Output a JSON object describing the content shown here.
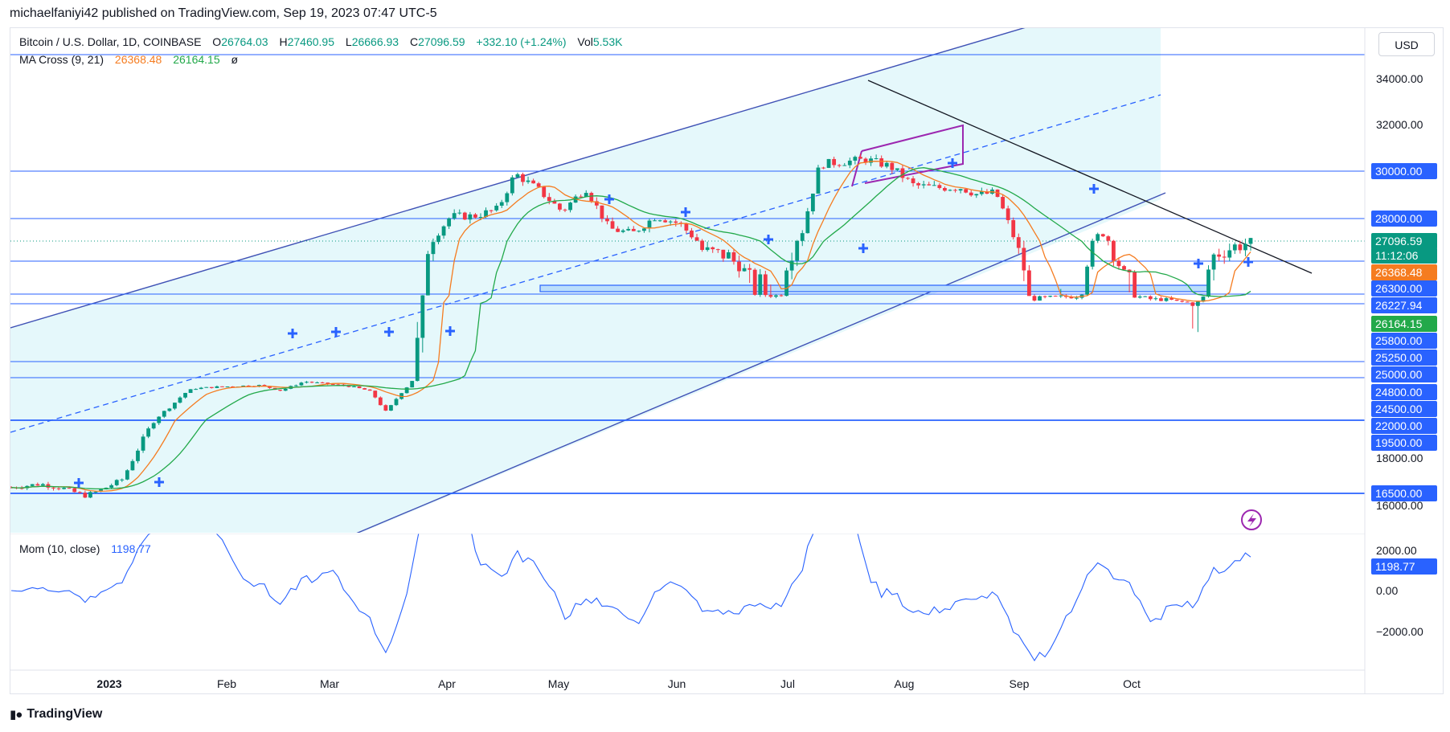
{
  "caption": "michaelfaniyi42 published on TradingView.com, Sep 19, 2023 07:47 UTC-5",
  "legend": {
    "symbol": "Bitcoin / U.S. Dollar, 1D, COINBASE",
    "o_label": "O",
    "o": "26764.03",
    "h_label": "H",
    "h": "27460.95",
    "l_label": "L",
    "l": "26666.93",
    "c_label": "C",
    "c": "27096.59",
    "change": "+332.10 (+1.24%)",
    "vol_label": "Vol",
    "vol": "5.53K"
  },
  "ma_legend": {
    "name": "MA Cross (9, 21)",
    "ma9": "26368.48",
    "ma21": "26164.15",
    "extra": "ø"
  },
  "mom_legend": {
    "name": "Mom (10, close)",
    "value": "1198.77"
  },
  "currency": "USD",
  "footer": "TradingView",
  "colors": {
    "up": "#089981",
    "down": "#f23645",
    "ma9": "#f57c20",
    "ma21": "#22a94a",
    "level": "#2962ff",
    "channel_fill": "#b2ebf2",
    "trend": "#3f51b5",
    "flag": "#9c27b0",
    "momentum": "#2962ff"
  },
  "chart_data": [
    {
      "type": "candlestick",
      "title": "Bitcoin / U.S. Dollar, 1D, COINBASE",
      "x_ticks": [
        "2023",
        "Feb",
        "Mar",
        "Apr",
        "May",
        "Jun",
        "Jul",
        "Aug",
        "Sep",
        "Oct"
      ],
      "y_ticks": [
        "34000.00",
        "32000.00",
        "30000.00",
        "28000.00",
        "18000.00",
        "16000.00"
      ],
      "price_labels": [
        {
          "value": "30000.00",
          "style": "level"
        },
        {
          "value": "28000.00",
          "style": "level"
        },
        {
          "value": "27096.59",
          "style": "last"
        },
        {
          "value": "11:12:06",
          "style": "last"
        },
        {
          "value": "26368.48",
          "style": "ma9"
        },
        {
          "value": "26300.00",
          "style": "level"
        },
        {
          "value": "26227.94",
          "style": "level"
        },
        {
          "value": "26164.15",
          "style": "ma21"
        },
        {
          "value": "25800.00",
          "style": "level"
        },
        {
          "value": "25250.00",
          "style": "level"
        },
        {
          "value": "25000.00",
          "style": "level"
        },
        {
          "value": "24800.00",
          "style": "level"
        },
        {
          "value": "24500.00",
          "style": "level"
        },
        {
          "value": "22000.00",
          "style": "level"
        },
        {
          "value": "19500.00",
          "style": "level"
        },
        {
          "value": "16500.00",
          "style": "level"
        }
      ],
      "horizontal_levels": [
        34700,
        30000,
        28000,
        26700,
        26227.94,
        25250,
        25000,
        24800,
        24500,
        19600,
        16500
      ],
      "support_zone": [
        25050,
        25300
      ],
      "ma_values": {
        "ma9": 26368.48,
        "ma21": 26164.15
      },
      "last_price": 27096.59
    },
    {
      "type": "line",
      "title": "Mom (10, close)",
      "y_ticks": [
        "2000.00",
        "0.00",
        "−2000.00"
      ],
      "last_value": 1198.77
    }
  ]
}
